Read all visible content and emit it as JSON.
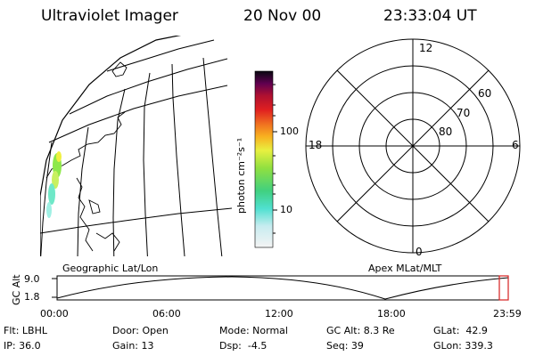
{
  "header": {
    "instrument": "Ultraviolet Imager",
    "date": "20 Nov 00",
    "time": "23:33:04 UT"
  },
  "map_panel": {
    "label": "Geographic Lat/Lon"
  },
  "colorbar": {
    "unit_label": "photon cm⁻²s⁻¹",
    "ticks": [
      "100",
      "10"
    ],
    "scale": "log"
  },
  "polar_panel": {
    "label": "Apex MLat/MLT",
    "mlt_labels": [
      "12",
      "18",
      "6",
      "0"
    ],
    "lat_labels": [
      "60",
      "70",
      "80"
    ]
  },
  "timeline": {
    "axis_label": "GC Alt",
    "y_ticks": [
      "9.0",
      "1.8"
    ],
    "time_ticks": [
      "00:00",
      "06:00",
      "12:00",
      "18:00",
      "23:59"
    ],
    "marker_color": "#d62020"
  },
  "info": {
    "flt": "Flt: LBHL",
    "ip": "IP: 36.0",
    "door": "Door: Open",
    "gain": "Gain: 13",
    "mode": "Mode: Normal",
    "dsp": "Dsp:  -4.5",
    "gcalt": "GC Alt: 8.3 Re",
    "seq": "Seq: 39",
    "glat": "GLat:  42.9",
    "glon": "GLon: 339.3"
  }
}
